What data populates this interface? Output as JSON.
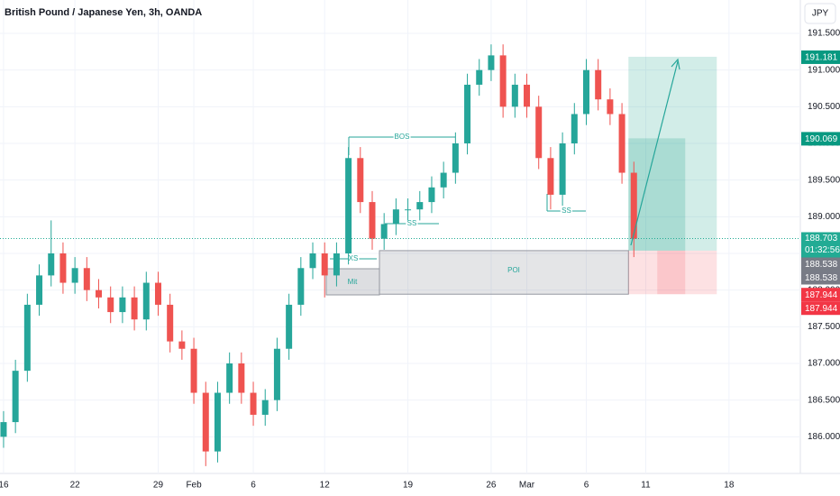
{
  "chart_data": {
    "type": "candlestick",
    "title": "British Pound / Japanese Yen, 3h, OANDA",
    "currency": "JPY",
    "x": [
      0,
      1,
      2,
      3,
      4,
      5,
      6,
      7,
      8,
      9,
      10,
      11,
      12,
      13,
      14,
      15,
      16,
      17,
      18,
      19,
      20,
      21,
      22,
      23,
      24,
      25,
      26,
      27,
      28,
      29,
      30,
      31,
      32,
      33,
      34,
      35,
      36,
      37,
      38,
      39,
      40,
      41,
      42,
      43,
      44,
      45,
      46,
      47,
      48,
      49,
      50,
      51,
      52,
      53
    ],
    "open": [
      186.0,
      186.2,
      186.9,
      187.8,
      188.2,
      188.5,
      188.1,
      188.3,
      188.0,
      187.9,
      187.7,
      187.9,
      187.6,
      188.1,
      187.8,
      187.3,
      187.2,
      186.6,
      185.8,
      186.6,
      187.0,
      186.6,
      186.3,
      186.5,
      187.2,
      187.8,
      188.3,
      188.5,
      188.2,
      188.5,
      189.8,
      189.2,
      188.7,
      188.9,
      189.1,
      189.1,
      189.2,
      189.4,
      189.6,
      190.0,
      190.8,
      191.0,
      191.2,
      190.5,
      190.8,
      190.5,
      189.8,
      189.3,
      190.0,
      190.4,
      191.0,
      190.6,
      190.4,
      189.6
    ],
    "high": [
      186.35,
      187.05,
      187.95,
      188.35,
      188.95,
      188.65,
      188.45,
      188.45,
      188.15,
      188.05,
      188.05,
      188.05,
      188.25,
      188.25,
      187.95,
      187.45,
      187.35,
      186.75,
      186.75,
      187.15,
      187.15,
      186.75,
      186.65,
      187.35,
      187.95,
      188.45,
      188.65,
      188.65,
      188.65,
      189.95,
      189.95,
      189.35,
      189.05,
      189.25,
      189.25,
      189.35,
      189.55,
      189.75,
      190.15,
      190.95,
      191.15,
      191.35,
      191.35,
      190.95,
      190.95,
      190.65,
      189.95,
      190.15,
      190.55,
      191.15,
      191.15,
      190.75,
      190.55,
      189.75
    ],
    "low": [
      185.85,
      186.05,
      186.75,
      187.65,
      188.05,
      187.95,
      187.95,
      187.85,
      187.75,
      187.55,
      187.55,
      187.45,
      187.45,
      187.65,
      187.15,
      187.05,
      186.45,
      185.6,
      185.65,
      186.45,
      186.45,
      186.15,
      186.15,
      186.35,
      187.05,
      187.65,
      188.15,
      187.9,
      188.05,
      188.35,
      189.05,
      188.55,
      188.55,
      188.75,
      188.95,
      188.95,
      189.05,
      189.25,
      189.45,
      189.85,
      190.65,
      190.85,
      190.35,
      190.35,
      190.35,
      189.65,
      189.1,
      189.15,
      189.85,
      190.25,
      190.45,
      190.25,
      189.45,
      188.45
    ],
    "close": [
      186.2,
      186.9,
      187.8,
      188.2,
      188.5,
      188.1,
      188.3,
      188.0,
      187.9,
      187.7,
      187.9,
      187.6,
      188.1,
      187.8,
      187.3,
      187.2,
      186.6,
      185.8,
      186.6,
      187.0,
      186.6,
      186.3,
      186.5,
      187.2,
      187.8,
      188.3,
      188.5,
      188.2,
      188.5,
      189.8,
      189.2,
      188.7,
      188.9,
      189.1,
      189.1,
      189.2,
      189.4,
      189.6,
      190.0,
      190.8,
      191.0,
      191.2,
      190.5,
      190.8,
      190.5,
      189.8,
      189.3,
      190.0,
      190.4,
      191.0,
      190.6,
      190.4,
      189.6,
      188.7
    ],
    "up_color": "#26a69a",
    "down_color": "#ef5350",
    "xlim": [
      -0.3,
      67
    ],
    "xticks": [
      {
        "value": 0,
        "label": "16"
      },
      {
        "value": 6,
        "label": "22"
      },
      {
        "value": 13,
        "label": "29"
      },
      {
        "value": 16,
        "label": "Feb"
      },
      {
        "value": 21,
        "label": "6"
      },
      {
        "value": 27,
        "label": "12"
      },
      {
        "value": 34,
        "label": "19"
      },
      {
        "value": 41,
        "label": "26"
      },
      {
        "value": 44,
        "label": "Mar"
      },
      {
        "value": 49,
        "label": "6"
      },
      {
        "value": 54,
        "label": "11"
      },
      {
        "value": 61,
        "label": "18"
      }
    ],
    "ylim": [
      185.5,
      191.955
    ],
    "yticks": [
      {
        "value": 186,
        "label": "186.000"
      },
      {
        "value": 186.5,
        "label": "186.500"
      },
      {
        "value": 187,
        "label": "187.000"
      },
      {
        "value": 187.5,
        "label": "187.500"
      },
      {
        "value": 188,
        "label": "188.000"
      },
      {
        "value": 188.5,
        "label": "188.500"
      },
      {
        "value": 189,
        "label": "189.000"
      },
      {
        "value": 189.5,
        "label": "189.500"
      },
      {
        "value": 190,
        "label": "190.000"
      },
      {
        "value": 190.5,
        "label": "190.500"
      },
      {
        "value": 191,
        "label": "191.000"
      },
      {
        "value": 191.5,
        "label": "191.500"
      }
    ],
    "last_price": {
      "value": 188.703,
      "countdown": "01:32:56",
      "color": "#22ab94"
    },
    "price_tags": [
      {
        "value": 191.181,
        "color": "#089981"
      },
      {
        "value": 190.069,
        "color": "#089981"
      },
      {
        "value": 188.538,
        "color": "#787b86"
      },
      {
        "value": 188.538,
        "color": "#787b86"
      },
      {
        "value": 187.944,
        "color": "#f23645"
      },
      {
        "value": 187.944,
        "color": "#f23645"
      }
    ],
    "annotations": [
      "BOS",
      "SS",
      "SS",
      "XS",
      "Mit",
      "POI"
    ]
  }
}
